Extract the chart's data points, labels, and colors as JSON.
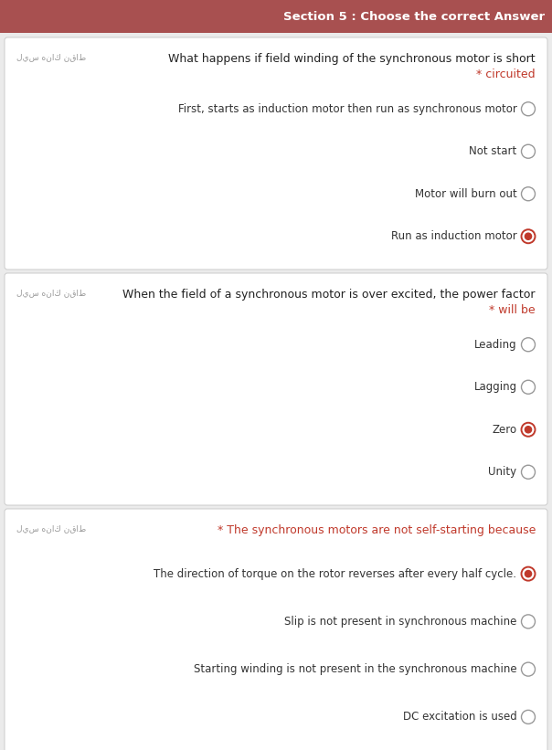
{
  "header_text": "Section 5 : Choose the correct Answer",
  "header_bg": "#a85050",
  "header_text_color": "#ffffff",
  "page_bg": "#ebebeb",
  "card_bg": "#ffffff",
  "card_border": "#cccccc",
  "question_color": "#222222",
  "option_color": "#333333",
  "arabic_color": "#999999",
  "selected_color": "#c0392b",
  "unselected_border": "#999999",
  "figsize": [
    6.04,
    8.21
  ],
  "dpi": 100,
  "questions": [
    {
      "arabic": "ليس هناك نقاط",
      "line1": "What happens if field winding of the synchronous motor is short",
      "line2": "* circuited",
      "line2_red": true,
      "options": [
        "First, starts as induction motor then run as synchronous motor",
        "Not start",
        "Motor will burn out",
        "Run as induction motor"
      ],
      "selected": 3
    },
    {
      "arabic": "ليس هناك نقاط",
      "line1": "When the field of a synchronous motor is over excited, the power factor",
      "line2": "* will be",
      "line2_red": true,
      "options": [
        "Leading",
        "Lagging",
        "Zero",
        "Unity"
      ],
      "selected": 2
    },
    {
      "arabic": "ليس هناك نقاط",
      "line1": "* The synchronous motors are not self-starting because",
      "line2": null,
      "line2_red": false,
      "options": [
        "The direction of torque on the rotor reverses after every half cycle.",
        "Slip is not present in synchronous machine",
        "Starting winding is not present in the synchronous machine",
        "DC excitation is used"
      ],
      "selected": 0
    }
  ]
}
